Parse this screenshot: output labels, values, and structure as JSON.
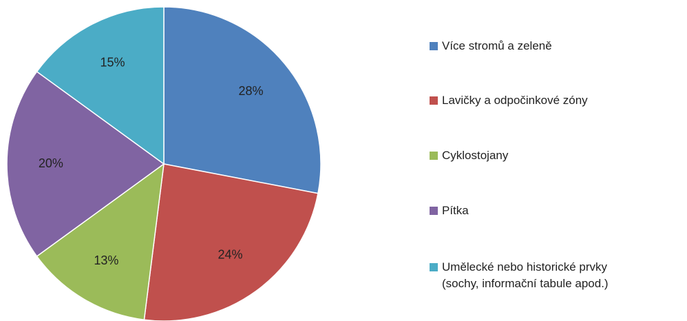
{
  "chart_data": {
    "type": "pie",
    "categories": [
      "Více stromů a zeleně",
      "Lavičky a odpočinkové zóny",
      "Cyklostojany",
      "Pítka",
      "Umělecké nebo historické prvky (sochy, informační tabule apod.)"
    ],
    "values": [
      28,
      24,
      13,
      20,
      15
    ],
    "value_labels": [
      "28%",
      "24%",
      "13%",
      "20%",
      "15%"
    ],
    "colors": [
      "#4f81bd",
      "#c0504d",
      "#9bbb59",
      "#8064a2",
      "#4bacc6"
    ],
    "legend": "right"
  }
}
